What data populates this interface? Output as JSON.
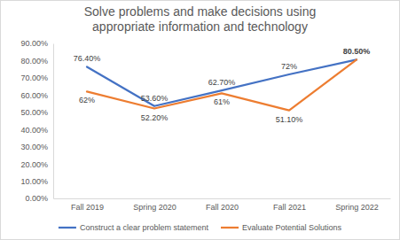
{
  "chart_data": {
    "type": "line",
    "title": "Solve problems and make decisions using appropriate information and technology",
    "categories": [
      "Fall 2019",
      "Spring 2020",
      "Fall 2020",
      "Fall 2021",
      "Spring 2022"
    ],
    "series": [
      {
        "name": "Construct a clear problem statement",
        "color": "#4472c4",
        "values": [
          76.4,
          53.6,
          62.7,
          72,
          80.5
        ],
        "value_labels": [
          "76.40%",
          "53.60%",
          "62.70%",
          "72%",
          "80.50%"
        ]
      },
      {
        "name": "Evaluate Potential Solutions",
        "color": "#ed7d31",
        "values": [
          62,
          52.2,
          61,
          51.1,
          80.5
        ],
        "value_labels": [
          "62%",
          "52.20%",
          "61%",
          "51.10%",
          null
        ]
      }
    ],
    "ylim": [
      0,
      90
    ],
    "yticks": [
      {
        "value": 0,
        "label": "0.00%"
      },
      {
        "value": 10,
        "label": "10.00%"
      },
      {
        "value": 20,
        "label": "20.00%"
      },
      {
        "value": 30,
        "label": "30.00%"
      },
      {
        "value": 40,
        "label": "40.00%"
      },
      {
        "value": 50,
        "label": "50.00%"
      },
      {
        "value": 60,
        "label": "60.00%"
      },
      {
        "value": 70,
        "label": "70.00%"
      },
      {
        "value": 80,
        "label": "80.00%"
      },
      {
        "value": 90,
        "label": "90.00%"
      }
    ],
    "grid": false,
    "data_labels": true,
    "legend": "bottom"
  }
}
